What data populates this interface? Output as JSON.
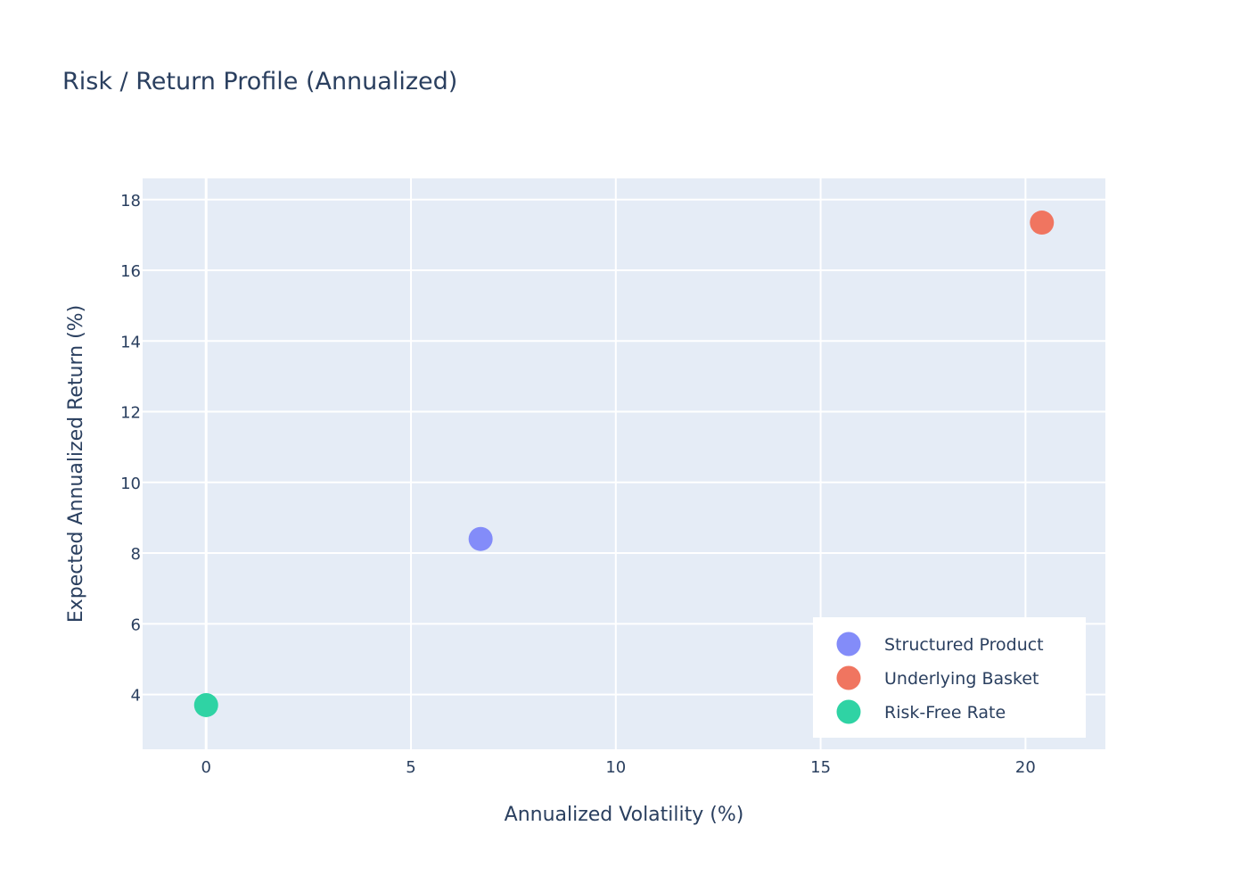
{
  "chart_data": {
    "type": "scatter",
    "title": "Risk / Return Profile (Annualized)",
    "xlabel": "Annualized Volatility (%)",
    "ylabel": "Expected Annualized Return (%)",
    "xlim": [
      -1.55,
      21.95
    ],
    "ylim": [
      2.45,
      18.6
    ],
    "xticks": [
      0,
      5,
      10,
      15,
      20
    ],
    "yticks": [
      4,
      6,
      8,
      10,
      12,
      14,
      16,
      18
    ],
    "grid": true,
    "legend_position": "bottom-right",
    "background_color": "#e5ecf6",
    "series": [
      {
        "name": "Structured Product",
        "color": "#838cf9",
        "x": [
          6.7
        ],
        "y": [
          8.4
        ]
      },
      {
        "name": "Underlying Basket",
        "color": "#f07560",
        "x": [
          20.4
        ],
        "y": [
          17.35
        ]
      },
      {
        "name": "Risk-Free Rate",
        "color": "#2fd3a4",
        "x": [
          0.0
        ],
        "y": [
          3.7
        ]
      }
    ]
  }
}
